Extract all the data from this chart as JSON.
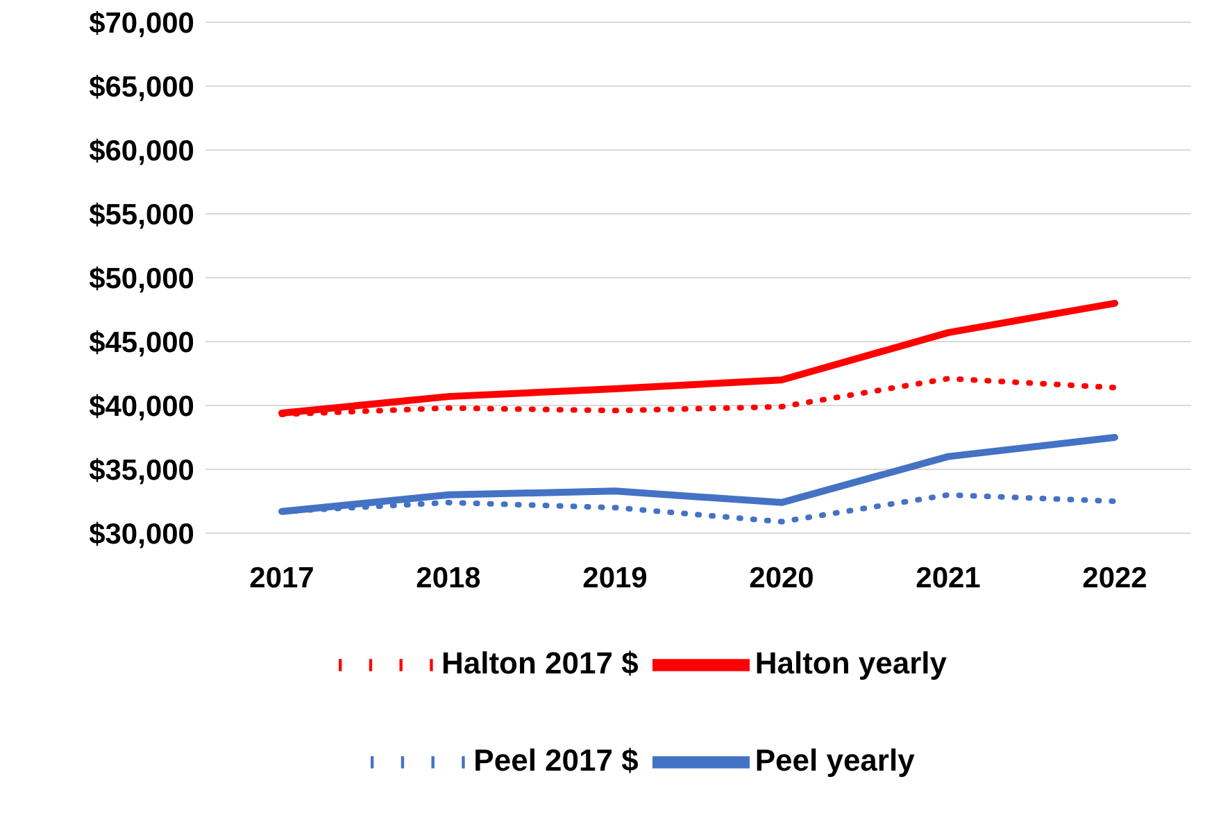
{
  "chart_data": {
    "type": "line",
    "categories": [
      "2017",
      "2018",
      "2019",
      "2020",
      "2021",
      "2022"
    ],
    "series": [
      {
        "name": "Halton yearly",
        "color": "#ff0000",
        "line_style": "solid",
        "values": [
          39400,
          40700,
          41300,
          42000,
          45700,
          48000
        ]
      },
      {
        "name": "Halton 2017 $",
        "color": "#ff0000",
        "line_style": "dotted",
        "values": [
          39300,
          39800,
          39600,
          39900,
          42100,
          41400
        ]
      },
      {
        "name": "Peel yearly",
        "color": "#4472c4",
        "line_style": "solid",
        "values": [
          31700,
          33000,
          33300,
          32400,
          36000,
          37500
        ]
      },
      {
        "name": "Peel 2017 $",
        "color": "#4472c4",
        "line_style": "dotted",
        "values": [
          31700,
          32400,
          32000,
          30900,
          33000,
          32500
        ]
      }
    ],
    "ylim": [
      30000,
      70000
    ],
    "yticks": [
      {
        "value": 30000,
        "label": "$30,000"
      },
      {
        "value": 35000,
        "label": "$35,000"
      },
      {
        "value": 40000,
        "label": "$40,000"
      },
      {
        "value": 45000,
        "label": "$45,000"
      },
      {
        "value": 50000,
        "label": "$50,000"
      },
      {
        "value": 55000,
        "label": "$55,000"
      },
      {
        "value": 60000,
        "label": "$60,000"
      },
      {
        "value": 65000,
        "label": "$65,000"
      },
      {
        "value": 70000,
        "label": "$70,000"
      }
    ],
    "grid": "y",
    "legend": "bottom",
    "marker": "none"
  }
}
